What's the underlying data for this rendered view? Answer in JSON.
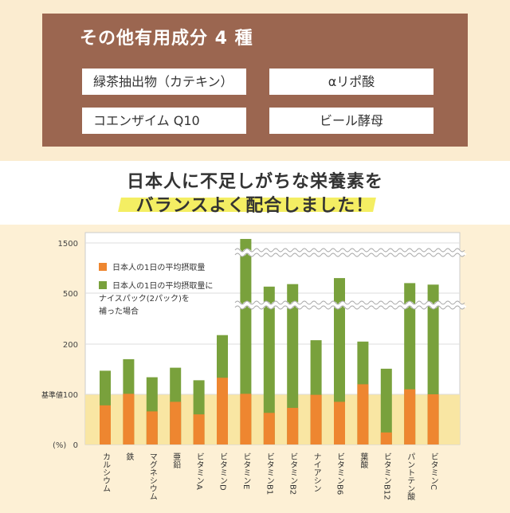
{
  "header": {
    "title": "その他有用成分 4 種",
    "ingredients": [
      "緑茶抽出物（カテキン）",
      "αリポ酸",
      "コエンザイム Q10",
      "ビール酵母"
    ]
  },
  "headline": {
    "line1": "日本人に不足しがちな栄養素を",
    "line2": "バランスよく配合しました！"
  },
  "colors": {
    "orange": "#ee8630",
    "green": "#79a13c",
    "brown": "#9b6650",
    "baseline_band": "#f9e6a3"
  },
  "chart_data": {
    "type": "bar",
    "stacked": true,
    "ylabel": "(%)",
    "axis_ticks": [
      "0",
      "100",
      "200",
      "500",
      "1500"
    ],
    "axis_ticks_note": "axis is broken between 200 and 500 and between 500 and 1500",
    "baseline": {
      "label": "基準値",
      "value": 100
    },
    "categories": [
      "カルシウム",
      "鉄",
      "マグネシウム",
      "亜鉛",
      "ビタミンA",
      "ビタミンD",
      "ビタミンE",
      "ビタミンB1",
      "ビタミンB2",
      "ナイアシン",
      "ビタミンB6",
      "葉酸",
      "ビタミンB12",
      "パントテン酸",
      "ビタミンC"
    ],
    "series": [
      {
        "name": "日本人の1日の平均摂取量",
        "color": "#ee8630",
        "values": [
          78,
          101,
          66,
          85,
          60,
          133,
          101,
          63,
          73,
          99,
          85,
          120,
          24,
          110,
          100
        ]
      },
      {
        "name": "日本人の1日の平均摂取量にナイスパック(2パック)を補った場合",
        "color": "#79a13c",
        "values": [
          147,
          170,
          134,
          153,
          128,
          253,
          1580,
          630,
          680,
          223,
          800,
          215,
          151,
          700,
          670
        ]
      }
    ],
    "legend": {
      "position": "top-left",
      "lines": [
        [
          "日本人の1日の平均摂取量"
        ],
        [
          "日本人の1日の平均摂取量に",
          "ナイスパック(2パック)を",
          "補った場合"
        ]
      ]
    }
  }
}
